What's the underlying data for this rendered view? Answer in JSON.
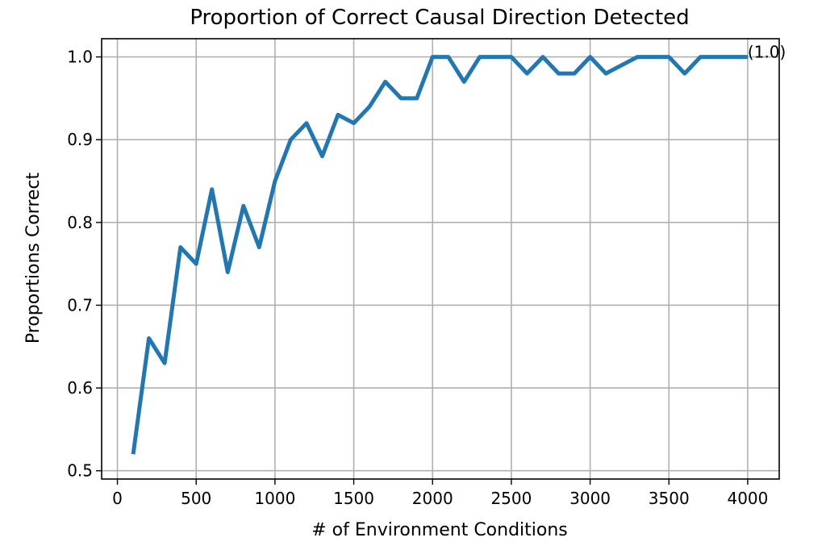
{
  "chart_data": {
    "type": "line",
    "title": "Proportion of Correct Causal Direction Detected",
    "xlabel": "# of Environment Conditions",
    "ylabel": "Proportions Correct",
    "xlim": [
      -100,
      4200
    ],
    "ylim": [
      0.49,
      1.022
    ],
    "xticks": [
      0,
      500,
      1000,
      1500,
      2000,
      2500,
      3000,
      3500,
      4000
    ],
    "yticks": [
      0.5,
      0.6,
      0.7,
      0.8,
      0.9,
      1.0
    ],
    "xtick_labels": [
      "0",
      "500",
      "1000",
      "1500",
      "2000",
      "2500",
      "3000",
      "3500",
      "4000"
    ],
    "ytick_labels": [
      "0.5",
      "0.6",
      "0.7",
      "0.8",
      "0.9",
      "1.0"
    ],
    "grid": true,
    "series": [
      {
        "color": "#1f77b4",
        "x": [
          100,
          200,
          300,
          400,
          500,
          600,
          700,
          800,
          900,
          1000,
          1100,
          1200,
          1300,
          1400,
          1500,
          1600,
          1700,
          1800,
          1900,
          2000,
          2100,
          2200,
          2300,
          2400,
          2500,
          2600,
          2700,
          2800,
          2900,
          3000,
          3100,
          3200,
          3300,
          3400,
          3500,
          3600,
          3700,
          3800,
          3900,
          4000
        ],
        "values": [
          0.52,
          0.66,
          0.63,
          0.77,
          0.75,
          0.84,
          0.74,
          0.82,
          0.77,
          0.85,
          0.9,
          0.92,
          0.88,
          0.93,
          0.92,
          0.94,
          0.97,
          0.95,
          0.95,
          1.0,
          1.0,
          0.97,
          1.0,
          1.0,
          1.0,
          0.98,
          1.0,
          0.98,
          0.98,
          1.0,
          0.98,
          0.99,
          1.0,
          1.0,
          1.0,
          0.98,
          1.0,
          1.0,
          1.0,
          1.0
        ]
      }
    ],
    "annotations": [
      {
        "text": "(1.0)",
        "x": 4000,
        "y": 1.0
      }
    ]
  }
}
